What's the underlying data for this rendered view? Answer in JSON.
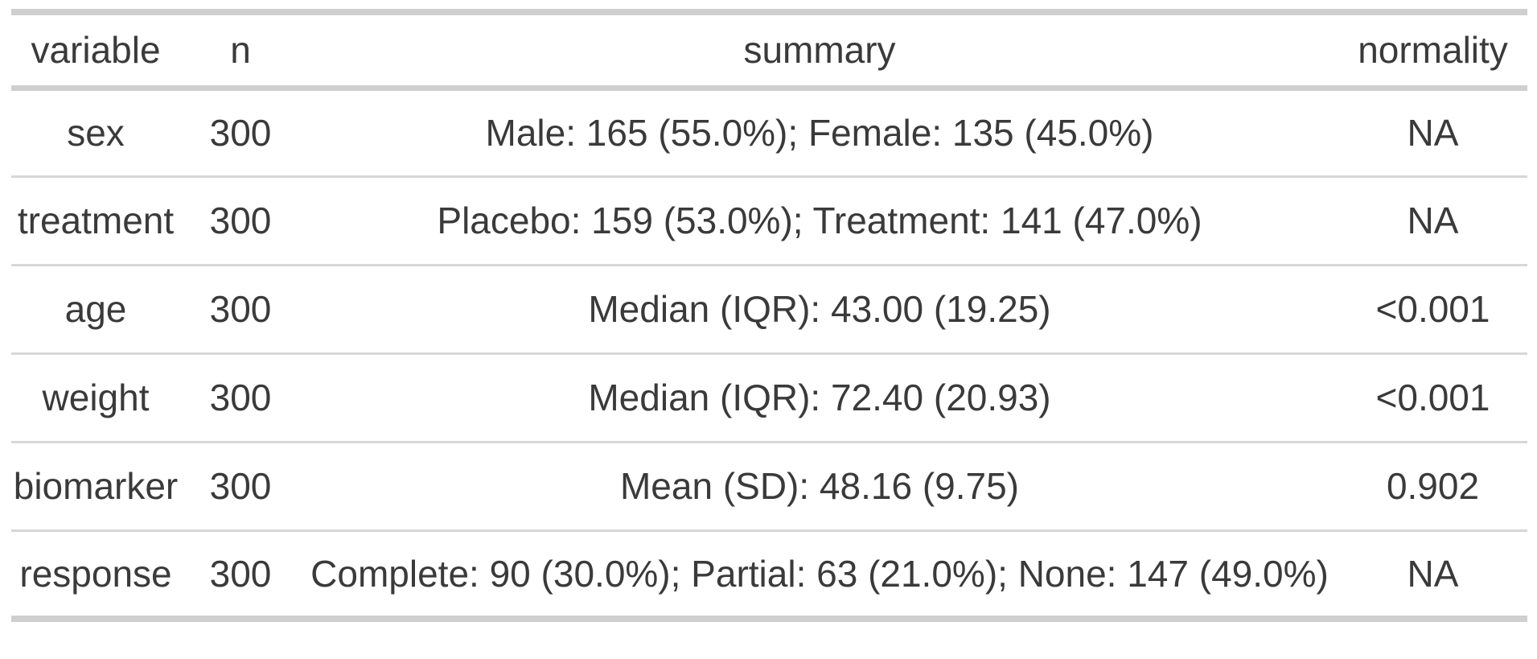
{
  "chart_data": {
    "type": "table",
    "title": "",
    "columns": [
      "variable",
      "n",
      "summary",
      "normality"
    ],
    "rows": [
      {
        "variable": "sex",
        "n": "300",
        "summary": "Male: 165 (55.0%); Female: 135 (45.0%)",
        "normality": "NA"
      },
      {
        "variable": "treatment",
        "n": "300",
        "summary": "Placebo: 159 (53.0%); Treatment: 141 (47.0%)",
        "normality": "NA"
      },
      {
        "variable": "age",
        "n": "300",
        "summary": "Median (IQR): 43.00 (19.25)",
        "normality": "<0.001"
      },
      {
        "variable": "weight",
        "n": "300",
        "summary": "Median (IQR): 72.40 (20.93)",
        "normality": "<0.001"
      },
      {
        "variable": "biomarker",
        "n": "300",
        "summary": "Mean (SD): 48.16 (9.75)",
        "normality": "0.902"
      },
      {
        "variable": "response",
        "n": "300",
        "summary": "Complete: 90 (30.0%); Partial: 63 (21.0%); None: 147 (49.0%)",
        "normality": "NA"
      }
    ],
    "colors": {
      "text": "#3a3a3a",
      "border_outer": "#cfcfcf",
      "border_inner": "#d7d7d7",
      "background": "#ffffff"
    }
  }
}
